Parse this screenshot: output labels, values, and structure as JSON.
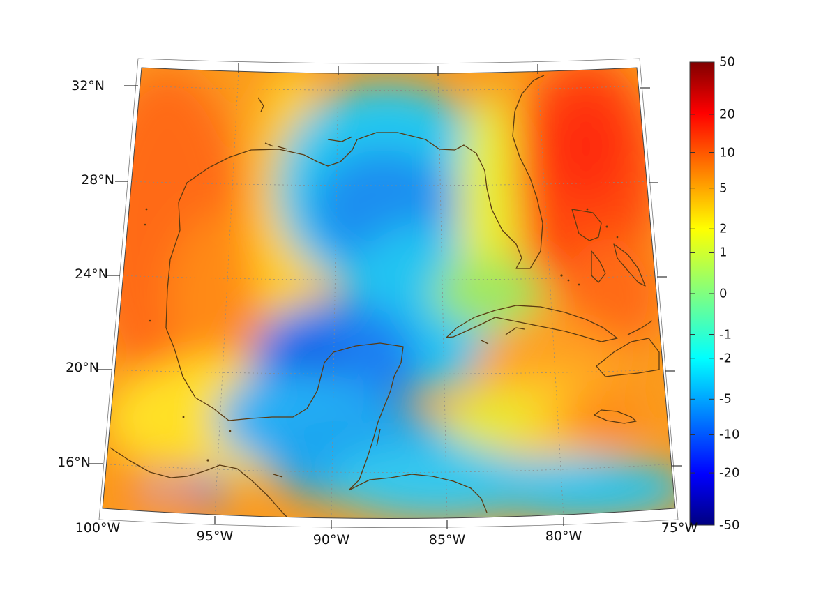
{
  "map": {
    "region": "Gulf of Mexico and Caribbean",
    "projection": "conic",
    "lon_range": [
      -100,
      -75
    ],
    "lat_range": [
      14,
      33
    ],
    "graticule": true,
    "coastline_color": "#5a3a12",
    "lat_labels": [
      {
        "text": "32°N",
        "lat": 32
      },
      {
        "text": "28°N",
        "lat": 28
      },
      {
        "text": "24°N",
        "lat": 24
      },
      {
        "text": "20°N",
        "lat": 20
      },
      {
        "text": "16°N",
        "lat": 16
      }
    ],
    "lon_labels": [
      {
        "text": "100°W",
        "lon": -100
      },
      {
        "text": "95°W",
        "lon": -95
      },
      {
        "text": "90°W",
        "lon": -90
      },
      {
        "text": "85°W",
        "lon": -85
      },
      {
        "text": "80°W",
        "lon": -80
      },
      {
        "text": "75°W",
        "lon": -75
      }
    ]
  },
  "colorbar": {
    "colormap": "jet",
    "scale": "symmetric-log",
    "range": [
      -50,
      50
    ],
    "tick_labels": [
      "50",
      "20",
      "10",
      "5",
      "2",
      "1",
      "0",
      "-1",
      "-2",
      "-5",
      "-10",
      "-20",
      "-50"
    ]
  }
}
